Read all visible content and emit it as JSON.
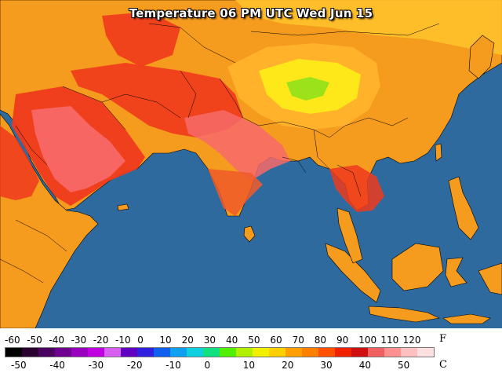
{
  "title": "Temperature 06 PM UTC Wed Jun 15",
  "colors": {
    "ocean": "#2e6a9e",
    "land_mid": "#f59b1e",
    "land_hot": "#ef3a1c",
    "land_veryhot": "#f76a6a",
    "land_warm": "#ffb22a",
    "land_cool": "#ffe81a",
    "land_cold": "#9be21a",
    "borders": "#000000"
  },
  "legend": {
    "fahrenheit_unit": "F",
    "celsius_unit": "C",
    "fahrenheit_ticks": [
      "-60",
      "-50",
      "-40",
      "-30",
      "-20",
      "-10",
      "0",
      "10",
      "20",
      "30",
      "40",
      "50",
      "60",
      "70",
      "80",
      "90",
      "100",
      "110",
      "120"
    ],
    "celsius_ticks": [
      "-50",
      "-40",
      "-30",
      "-20",
      "-10",
      "0",
      "10",
      "20",
      "30",
      "40",
      "50"
    ],
    "scale_colors": [
      "#000000",
      "#2a0030",
      "#4a0060",
      "#700090",
      "#9a00c0",
      "#c000e0",
      "#d860f0",
      "#6000c0",
      "#3020e0",
      "#1060f0",
      "#10a0f0",
      "#10d0e0",
      "#10e080",
      "#50f000",
      "#b0f000",
      "#f0f000",
      "#ffd000",
      "#ffa000",
      "#ff8000",
      "#ff5000",
      "#f02000",
      "#d01010",
      "#f06060",
      "#ff9090",
      "#ffc0c0",
      "#ffe0e0"
    ]
  }
}
